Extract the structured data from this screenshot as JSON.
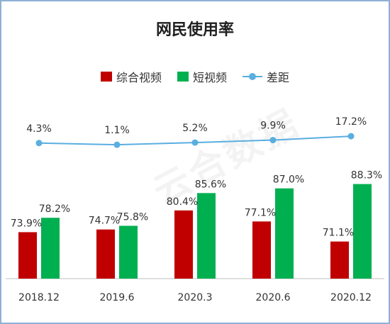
{
  "chart_data": {
    "type": "bar",
    "title": "网民使用率",
    "categories": [
      "2018.12",
      "2019.6",
      "2020.3",
      "2020.6",
      "2020.12"
    ],
    "series": [
      {
        "name": "综合视频",
        "kind": "bar",
        "color": "#c00000",
        "values": [
          73.9,
          74.7,
          80.4,
          77.1,
          71.1
        ],
        "labels": [
          "73.9%",
          "74.7%",
          "80.4%",
          "77.1%",
          "71.1%"
        ]
      },
      {
        "name": "短视频",
        "kind": "bar",
        "color": "#00b050",
        "values": [
          78.2,
          75.8,
          85.6,
          87.0,
          88.3
        ],
        "labels": [
          "78.2%",
          "75.8%",
          "85.6%",
          "87.0%",
          "88.3%"
        ]
      },
      {
        "name": "差距",
        "kind": "line",
        "color": "#5aaee0",
        "values": [
          4.3,
          1.1,
          5.2,
          9.9,
          17.2
        ],
        "labels": [
          "4.3%",
          "1.1%",
          "5.2%",
          "9.9%",
          "17.2%"
        ]
      }
    ],
    "xlabel": "",
    "ylabel": "",
    "grid": false,
    "legend_position": "top-center"
  },
  "watermark": "云合数据"
}
